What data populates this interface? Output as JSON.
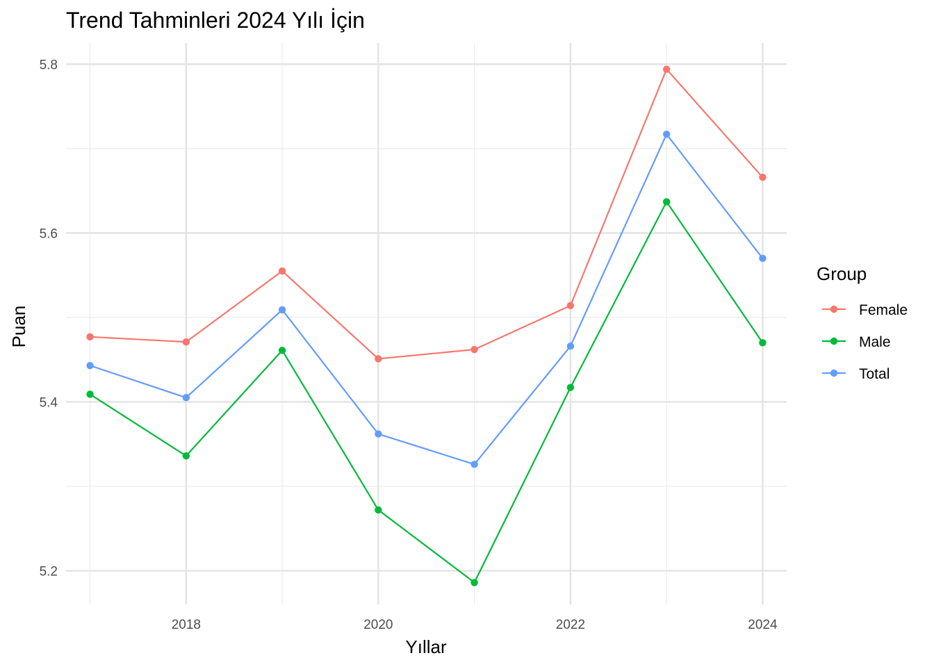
{
  "chart_data": {
    "type": "line",
    "title": "Trend Tahminleri 2024 Yılı İçin",
    "xlabel": "Yıllar",
    "ylabel": "Puan",
    "x": [
      2017,
      2018,
      2019,
      2020,
      2021,
      2022,
      2023,
      2024
    ],
    "xlim": [
      2016.75,
      2024.25
    ],
    "ylim": [
      5.16,
      5.825
    ],
    "x_ticks": [
      2018,
      2020,
      2022,
      2024
    ],
    "y_ticks": [
      5.2,
      5.4,
      5.6,
      5.8
    ],
    "y_tick_labels": [
      "5.2",
      "5.4",
      "5.6",
      "5.8"
    ],
    "x_tick_labels": [
      "2018",
      "2020",
      "2022",
      "2024"
    ],
    "grid": true,
    "legend": {
      "title": "Group",
      "position": "right"
    },
    "series": [
      {
        "name": "Female",
        "color": "#F8766D",
        "values": [
          5.477,
          5.471,
          5.555,
          5.451,
          5.462,
          5.514,
          5.794,
          5.666
        ]
      },
      {
        "name": "Male",
        "color": "#00BA38",
        "values": [
          5.409,
          5.336,
          5.461,
          5.272,
          5.186,
          5.417,
          5.637,
          5.47
        ]
      },
      {
        "name": "Total",
        "color": "#619CFF",
        "values": [
          5.443,
          5.405,
          5.509,
          5.362,
          5.326,
          5.466,
          5.717,
          5.57
        ]
      }
    ]
  }
}
